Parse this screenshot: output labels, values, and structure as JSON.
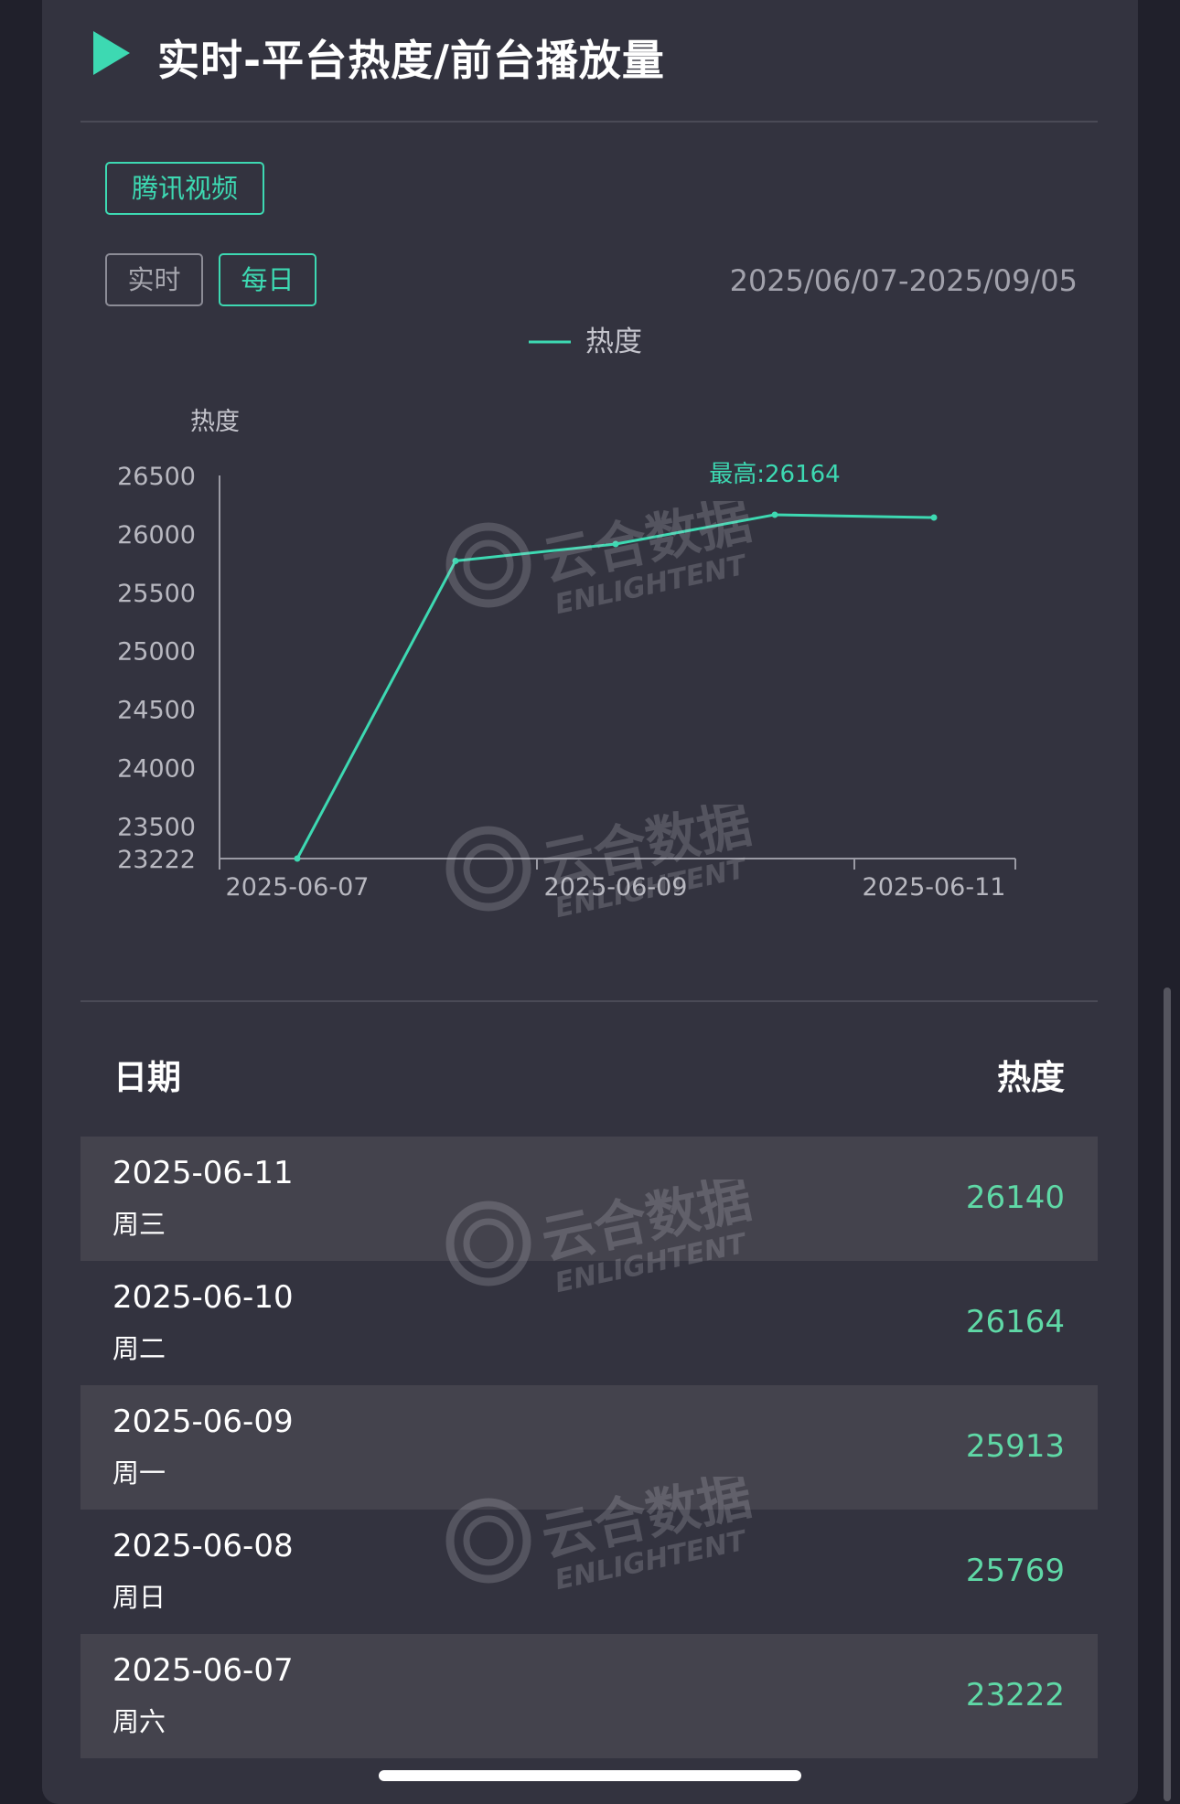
{
  "header": {
    "title": "实时-平台热度/前台播放量"
  },
  "platform_tag": "腾讯视频",
  "mode_tabs": [
    {
      "label": "实时",
      "active": false
    },
    {
      "label": "每日",
      "active": true
    }
  ],
  "date_range": "2025/06/07-2025/09/05",
  "watermark": {
    "cn": "云合数据",
    "en": "ENLIGHTENT"
  },
  "colors": {
    "accent": "#3dd9b2",
    "value_green": "#5fd8a6",
    "card_bg": "#33333f",
    "page_bg": "#20202b"
  },
  "chart_data": {
    "type": "line",
    "legend": [
      "热度"
    ],
    "legend_position": "top-center",
    "ylabel": "热度",
    "xlabel": "",
    "x": [
      "2025-06-07",
      "2025-06-08",
      "2025-06-09",
      "2025-06-10",
      "2025-06-11"
    ],
    "x_tick_labels": [
      "2025-06-07",
      "2025-06-09",
      "2025-06-11"
    ],
    "series": [
      {
        "name": "热度",
        "values": [
          23222,
          25769,
          25913,
          26164,
          26140
        ]
      }
    ],
    "y_ticks": [
      23222,
      23500,
      24000,
      24500,
      25000,
      25500,
      26000,
      26500
    ],
    "ylim": [
      23222,
      26500
    ],
    "annotation": "最高:26164",
    "grid": false
  },
  "table": {
    "header_date": "日期",
    "header_value": "热度",
    "rows": [
      {
        "date": "2025-06-11",
        "weekday": "周三",
        "value": "26140"
      },
      {
        "date": "2025-06-10",
        "weekday": "周二",
        "value": "26164"
      },
      {
        "date": "2025-06-09",
        "weekday": "周一",
        "value": "25913"
      },
      {
        "date": "2025-06-08",
        "weekday": "周日",
        "value": "25769"
      },
      {
        "date": "2025-06-07",
        "weekday": "周六",
        "value": "23222"
      }
    ]
  }
}
